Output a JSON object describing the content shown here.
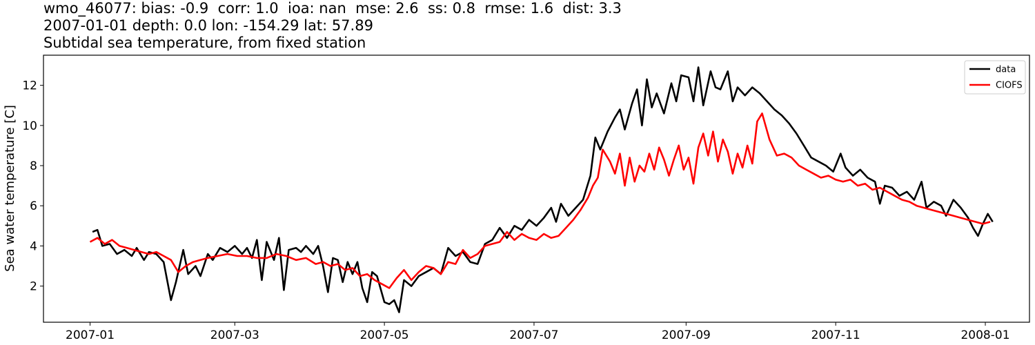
{
  "header": {
    "line1": "wmo_46077: bias: -0.9  corr: 1.0  ioa: nan  mse: 2.6  ss: 0.8  rmse: 1.6  dist: 3.3",
    "line2": "2007-01-01 depth: 0.0 lon: -154.29 lat: 57.89",
    "line3": "Subtidal sea temperature, from fixed station"
  },
  "chart_data": {
    "type": "line",
    "title": "",
    "xlabel": "",
    "ylabel": "Sea water temperature [C]",
    "xlim": [
      "2006-12-13",
      "2008-01-19"
    ],
    "ylim": [
      0.2,
      13.5
    ],
    "x_ticks": [
      "2007-01",
      "2007-03",
      "2007-05",
      "2007-07",
      "2007-09",
      "2007-11",
      "2008-01"
    ],
    "y_ticks": [
      2,
      4,
      6,
      8,
      10,
      12
    ],
    "grid": false,
    "legend_position": "top-right",
    "series": [
      {
        "name": "data",
        "color": "#000000",
        "points": [
          [
            "2007-01-02",
            4.7
          ],
          [
            "2007-01-04",
            4.8
          ],
          [
            "2007-01-06",
            4.0
          ],
          [
            "2007-01-09",
            4.1
          ],
          [
            "2007-01-12",
            3.6
          ],
          [
            "2007-01-15",
            3.8
          ],
          [
            "2007-01-18",
            3.5
          ],
          [
            "2007-01-20",
            3.9
          ],
          [
            "2007-01-23",
            3.3
          ],
          [
            "2007-01-25",
            3.7
          ],
          [
            "2007-01-28",
            3.6
          ],
          [
            "2007-01-31",
            3.2
          ],
          [
            "2007-02-03",
            1.3
          ],
          [
            "2007-02-05",
            2.2
          ],
          [
            "2007-02-08",
            3.8
          ],
          [
            "2007-02-10",
            2.6
          ],
          [
            "2007-02-13",
            3.0
          ],
          [
            "2007-02-15",
            2.5
          ],
          [
            "2007-02-18",
            3.6
          ],
          [
            "2007-02-20",
            3.3
          ],
          [
            "2007-02-23",
            3.9
          ],
          [
            "2007-02-26",
            3.7
          ],
          [
            "2007-03-01",
            4.0
          ],
          [
            "2007-03-04",
            3.6
          ],
          [
            "2007-03-06",
            3.9
          ],
          [
            "2007-03-08",
            3.4
          ],
          [
            "2007-03-10",
            4.3
          ],
          [
            "2007-03-12",
            2.3
          ],
          [
            "2007-03-14",
            4.2
          ],
          [
            "2007-03-17",
            3.3
          ],
          [
            "2007-03-19",
            4.4
          ],
          [
            "2007-03-21",
            1.8
          ],
          [
            "2007-03-23",
            3.8
          ],
          [
            "2007-03-26",
            3.9
          ],
          [
            "2007-03-28",
            3.7
          ],
          [
            "2007-03-30",
            4.0
          ],
          [
            "2007-04-02",
            3.6
          ],
          [
            "2007-04-04",
            4.0
          ],
          [
            "2007-04-06",
            3.0
          ],
          [
            "2007-04-08",
            1.7
          ],
          [
            "2007-04-10",
            3.4
          ],
          [
            "2007-04-12",
            3.3
          ],
          [
            "2007-04-14",
            2.2
          ],
          [
            "2007-04-16",
            3.2
          ],
          [
            "2007-04-18",
            2.6
          ],
          [
            "2007-04-20",
            3.2
          ],
          [
            "2007-04-22",
            1.9
          ],
          [
            "2007-04-24",
            1.2
          ],
          [
            "2007-04-26",
            2.7
          ],
          [
            "2007-04-28",
            2.5
          ],
          [
            "2007-05-01",
            1.2
          ],
          [
            "2007-05-03",
            1.1
          ],
          [
            "2007-05-05",
            1.3
          ],
          [
            "2007-05-07",
            0.7
          ],
          [
            "2007-05-09",
            2.3
          ],
          [
            "2007-05-12",
            2.0
          ],
          [
            "2007-05-15",
            2.5
          ],
          [
            "2007-05-18",
            2.7
          ],
          [
            "2007-05-21",
            2.9
          ],
          [
            "2007-05-24",
            2.6
          ],
          [
            "2007-05-27",
            3.9
          ],
          [
            "2007-05-30",
            3.5
          ],
          [
            "2007-06-02",
            3.7
          ],
          [
            "2007-06-05",
            3.2
          ],
          [
            "2007-06-08",
            3.1
          ],
          [
            "2007-06-11",
            4.1
          ],
          [
            "2007-06-14",
            4.3
          ],
          [
            "2007-06-17",
            4.9
          ],
          [
            "2007-06-20",
            4.4
          ],
          [
            "2007-06-23",
            5.0
          ],
          [
            "2007-06-26",
            4.8
          ],
          [
            "2007-06-29",
            5.3
          ],
          [
            "2007-07-02",
            5.0
          ],
          [
            "2007-07-05",
            5.4
          ],
          [
            "2007-07-08",
            5.9
          ],
          [
            "2007-07-10",
            5.2
          ],
          [
            "2007-07-12",
            6.1
          ],
          [
            "2007-07-15",
            5.5
          ],
          [
            "2007-07-18",
            5.9
          ],
          [
            "2007-07-21",
            6.3
          ],
          [
            "2007-07-24",
            7.5
          ],
          [
            "2007-07-26",
            9.4
          ],
          [
            "2007-07-28",
            8.8
          ],
          [
            "2007-07-31",
            9.7
          ],
          [
            "2007-08-03",
            10.4
          ],
          [
            "2007-08-05",
            10.8
          ],
          [
            "2007-08-07",
            9.8
          ],
          [
            "2007-08-10",
            11.1
          ],
          [
            "2007-08-12",
            11.8
          ],
          [
            "2007-08-14",
            10.0
          ],
          [
            "2007-08-16",
            12.3
          ],
          [
            "2007-08-18",
            10.9
          ],
          [
            "2007-08-20",
            11.6
          ],
          [
            "2007-08-23",
            10.6
          ],
          [
            "2007-08-26",
            12.1
          ],
          [
            "2007-08-28",
            11.2
          ],
          [
            "2007-08-30",
            12.5
          ],
          [
            "2007-09-02",
            12.4
          ],
          [
            "2007-09-04",
            11.2
          ],
          [
            "2007-09-06",
            12.9
          ],
          [
            "2007-09-08",
            11.0
          ],
          [
            "2007-09-11",
            12.7
          ],
          [
            "2007-09-13",
            11.9
          ],
          [
            "2007-09-15",
            11.8
          ],
          [
            "2007-09-18",
            12.7
          ],
          [
            "2007-09-20",
            11.2
          ],
          [
            "2007-09-22",
            11.9
          ],
          [
            "2007-09-25",
            11.5
          ],
          [
            "2007-09-28",
            11.9
          ],
          [
            "2007-10-01",
            11.6
          ],
          [
            "2007-10-04",
            11.2
          ],
          [
            "2007-10-07",
            10.8
          ],
          [
            "2007-10-10",
            10.5
          ],
          [
            "2007-10-13",
            10.1
          ],
          [
            "2007-10-16",
            9.6
          ],
          [
            "2007-10-19",
            9.0
          ],
          [
            "2007-10-22",
            8.4
          ],
          [
            "2007-10-25",
            8.2
          ],
          [
            "2007-10-28",
            8.0
          ],
          [
            "2007-10-31",
            7.7
          ],
          [
            "2007-11-03",
            8.6
          ],
          [
            "2007-11-05",
            7.9
          ],
          [
            "2007-11-08",
            7.5
          ],
          [
            "2007-11-11",
            7.8
          ],
          [
            "2007-11-14",
            7.4
          ],
          [
            "2007-11-17",
            7.2
          ],
          [
            "2007-11-19",
            6.1
          ],
          [
            "2007-11-21",
            7.0
          ],
          [
            "2007-11-24",
            6.9
          ],
          [
            "2007-11-27",
            6.5
          ],
          [
            "2007-11-30",
            6.7
          ],
          [
            "2007-12-03",
            6.3
          ],
          [
            "2007-12-06",
            7.2
          ],
          [
            "2007-12-08",
            5.9
          ],
          [
            "2007-12-11",
            6.2
          ],
          [
            "2007-12-14",
            6.0
          ],
          [
            "2007-12-16",
            5.5
          ],
          [
            "2007-12-19",
            6.3
          ],
          [
            "2007-12-22",
            5.9
          ],
          [
            "2007-12-25",
            5.4
          ],
          [
            "2007-12-27",
            4.9
          ],
          [
            "2007-12-29",
            4.5
          ],
          [
            "2007-12-31",
            5.1
          ],
          [
            "2008-01-02",
            5.6
          ],
          [
            "2008-01-04",
            5.2
          ]
        ]
      },
      {
        "name": "CIOFS",
        "color": "#ff0000",
        "points": [
          [
            "2007-01-01",
            4.2
          ],
          [
            "2007-01-04",
            4.4
          ],
          [
            "2007-01-07",
            4.1
          ],
          [
            "2007-01-10",
            4.3
          ],
          [
            "2007-01-13",
            4.0
          ],
          [
            "2007-01-16",
            3.9
          ],
          [
            "2007-01-19",
            3.8
          ],
          [
            "2007-01-22",
            3.7
          ],
          [
            "2007-01-25",
            3.6
          ],
          [
            "2007-01-28",
            3.7
          ],
          [
            "2007-01-31",
            3.5
          ],
          [
            "2007-02-03",
            3.3
          ],
          [
            "2007-02-06",
            2.7
          ],
          [
            "2007-02-09",
            3.0
          ],
          [
            "2007-02-12",
            3.2
          ],
          [
            "2007-02-15",
            3.3
          ],
          [
            "2007-02-18",
            3.4
          ],
          [
            "2007-02-22",
            3.5
          ],
          [
            "2007-02-26",
            3.6
          ],
          [
            "2007-03-02",
            3.5
          ],
          [
            "2007-03-06",
            3.5
          ],
          [
            "2007-03-10",
            3.4
          ],
          [
            "2007-03-14",
            3.4
          ],
          [
            "2007-03-18",
            3.6
          ],
          [
            "2007-03-22",
            3.5
          ],
          [
            "2007-03-26",
            3.3
          ],
          [
            "2007-03-30",
            3.4
          ],
          [
            "2007-04-03",
            3.1
          ],
          [
            "2007-04-06",
            3.2
          ],
          [
            "2007-04-09",
            3.0
          ],
          [
            "2007-04-12",
            3.1
          ],
          [
            "2007-04-15",
            2.8
          ],
          [
            "2007-04-18",
            2.9
          ],
          [
            "2007-04-21",
            2.5
          ],
          [
            "2007-04-24",
            2.6
          ],
          [
            "2007-04-27",
            2.3
          ],
          [
            "2007-04-30",
            2.1
          ],
          [
            "2007-05-03",
            1.9
          ],
          [
            "2007-05-06",
            2.4
          ],
          [
            "2007-05-09",
            2.8
          ],
          [
            "2007-05-12",
            2.3
          ],
          [
            "2007-05-15",
            2.7
          ],
          [
            "2007-05-18",
            3.0
          ],
          [
            "2007-05-21",
            2.9
          ],
          [
            "2007-05-24",
            2.6
          ],
          [
            "2007-05-27",
            3.2
          ],
          [
            "2007-05-30",
            3.1
          ],
          [
            "2007-06-02",
            3.8
          ],
          [
            "2007-06-05",
            3.4
          ],
          [
            "2007-06-08",
            3.6
          ],
          [
            "2007-06-11",
            4.0
          ],
          [
            "2007-06-14",
            4.1
          ],
          [
            "2007-06-17",
            4.2
          ],
          [
            "2007-06-20",
            4.7
          ],
          [
            "2007-06-23",
            4.3
          ],
          [
            "2007-06-26",
            4.6
          ],
          [
            "2007-06-29",
            4.4
          ],
          [
            "2007-07-02",
            4.3
          ],
          [
            "2007-07-05",
            4.6
          ],
          [
            "2007-07-08",
            4.4
          ],
          [
            "2007-07-11",
            4.5
          ],
          [
            "2007-07-14",
            4.9
          ],
          [
            "2007-07-17",
            5.3
          ],
          [
            "2007-07-20",
            5.8
          ],
          [
            "2007-07-23",
            6.4
          ],
          [
            "2007-07-25",
            7.0
          ],
          [
            "2007-07-27",
            7.4
          ],
          [
            "2007-07-29",
            8.8
          ],
          [
            "2007-08-01",
            8.2
          ],
          [
            "2007-08-03",
            7.6
          ],
          [
            "2007-08-05",
            8.6
          ],
          [
            "2007-08-07",
            7.0
          ],
          [
            "2007-08-09",
            8.4
          ],
          [
            "2007-08-11",
            7.2
          ],
          [
            "2007-08-13",
            8.0
          ],
          [
            "2007-08-15",
            7.7
          ],
          [
            "2007-08-17",
            8.6
          ],
          [
            "2007-08-19",
            7.8
          ],
          [
            "2007-08-21",
            8.9
          ],
          [
            "2007-08-23",
            8.3
          ],
          [
            "2007-08-25",
            7.5
          ],
          [
            "2007-08-27",
            8.3
          ],
          [
            "2007-08-29",
            9.0
          ],
          [
            "2007-08-31",
            7.8
          ],
          [
            "2007-09-02",
            8.4
          ],
          [
            "2007-09-04",
            7.1
          ],
          [
            "2007-09-06",
            8.9
          ],
          [
            "2007-09-08",
            9.6
          ],
          [
            "2007-09-10",
            8.5
          ],
          [
            "2007-09-12",
            9.7
          ],
          [
            "2007-09-14",
            8.2
          ],
          [
            "2007-09-16",
            9.3
          ],
          [
            "2007-09-18",
            8.7
          ],
          [
            "2007-09-20",
            7.6
          ],
          [
            "2007-09-22",
            8.6
          ],
          [
            "2007-09-24",
            7.9
          ],
          [
            "2007-09-26",
            9.0
          ],
          [
            "2007-09-28",
            8.1
          ],
          [
            "2007-09-30",
            10.2
          ],
          [
            "2007-10-02",
            10.6
          ],
          [
            "2007-10-05",
            9.3
          ],
          [
            "2007-10-08",
            8.5
          ],
          [
            "2007-10-11",
            8.6
          ],
          [
            "2007-10-14",
            8.4
          ],
          [
            "2007-10-17",
            8.0
          ],
          [
            "2007-10-20",
            7.8
          ],
          [
            "2007-10-23",
            7.6
          ],
          [
            "2007-10-26",
            7.4
          ],
          [
            "2007-10-29",
            7.5
          ],
          [
            "2007-11-01",
            7.3
          ],
          [
            "2007-11-04",
            7.2
          ],
          [
            "2007-11-07",
            7.3
          ],
          [
            "2007-11-10",
            7.0
          ],
          [
            "2007-11-13",
            7.1
          ],
          [
            "2007-11-16",
            6.8
          ],
          [
            "2007-11-19",
            6.9
          ],
          [
            "2007-11-22",
            6.7
          ],
          [
            "2007-11-25",
            6.5
          ],
          [
            "2007-11-28",
            6.3
          ],
          [
            "2007-12-01",
            6.2
          ],
          [
            "2007-12-04",
            6.0
          ],
          [
            "2007-12-07",
            5.9
          ],
          [
            "2007-12-10",
            5.8
          ],
          [
            "2007-12-13",
            5.7
          ],
          [
            "2007-12-16",
            5.6
          ],
          [
            "2007-12-19",
            5.5
          ],
          [
            "2007-12-22",
            5.4
          ],
          [
            "2007-12-25",
            5.3
          ],
          [
            "2007-12-28",
            5.2
          ],
          [
            "2007-12-31",
            5.1
          ],
          [
            "2008-01-03",
            5.2
          ]
        ]
      }
    ]
  }
}
